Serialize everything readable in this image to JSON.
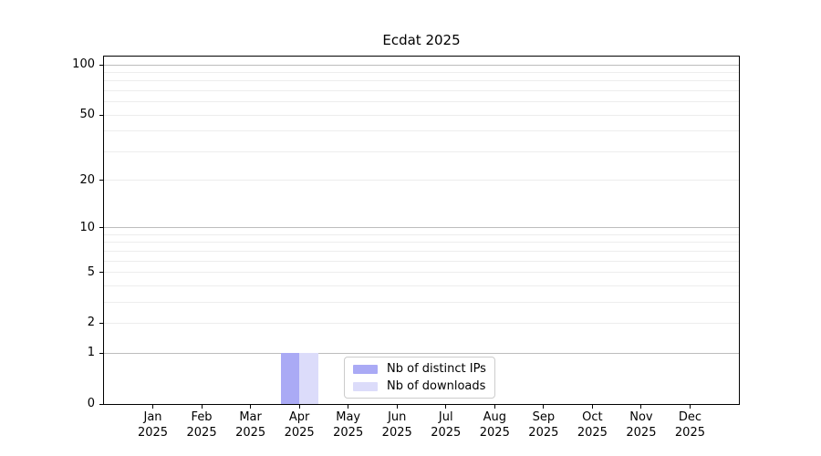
{
  "chart_data": {
    "type": "bar",
    "title": "Ecdat 2025",
    "categories": [
      "Jan",
      "Feb",
      "Mar",
      "Apr",
      "May",
      "Jun",
      "Jul",
      "Aug",
      "Sep",
      "Oct",
      "Nov",
      "Dec"
    ],
    "year_label": "2025",
    "series": [
      {
        "name": "Nb of distinct IPs",
        "color": "#aaaaf5",
        "values": [
          0,
          0,
          0,
          1,
          0,
          0,
          0,
          0,
          0,
          0,
          0,
          0
        ]
      },
      {
        "name": "Nb of downloads",
        "color": "#dcdcfa",
        "values": [
          0,
          0,
          0,
          1,
          0,
          0,
          0,
          0,
          0,
          0,
          0,
          0
        ]
      }
    ],
    "y_axis": {
      "scale": "log1p",
      "tick_values": [
        0,
        1,
        2,
        5,
        10,
        20,
        50,
        100
      ],
      "max": 112,
      "major_gridlines": [
        1,
        10,
        100
      ],
      "minor_gridlines": [
        2,
        3,
        4,
        5,
        6,
        7,
        8,
        9,
        20,
        30,
        40,
        50,
        60,
        70,
        80,
        90
      ]
    },
    "x_axis": {
      "grid": false
    },
    "legend": {
      "position": "bottom-center"
    },
    "colors": {
      "major_grid": "#bdbdbd",
      "minor_grid": "#ededed",
      "spine": "#000000",
      "background": "#ffffff",
      "legend_border": "#cccccc"
    }
  }
}
